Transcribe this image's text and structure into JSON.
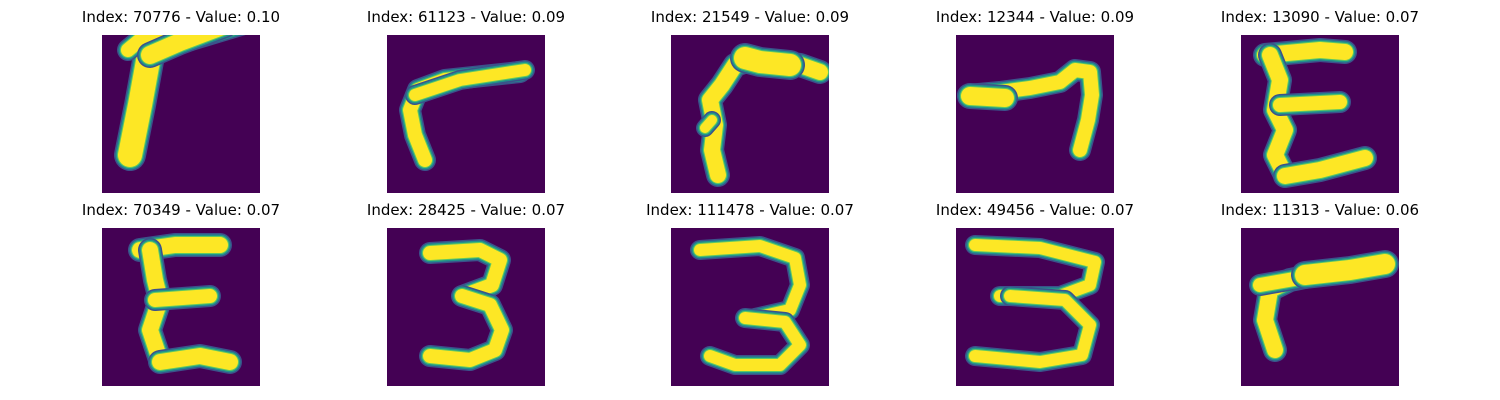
{
  "figure": {
    "background_color": "#ffffff",
    "image_background_color": "#440154",
    "colormap": [
      "#440154",
      "#3b528b",
      "#21918c",
      "#5ec962",
      "#fde725"
    ],
    "panels": [
      {
        "title": "Index: 70776 - Value: 0.10",
        "glyph": "seven-like stroke"
      },
      {
        "title": "Index: 61123 - Value: 0.09",
        "glyph": "seven-like stroke"
      },
      {
        "title": "Index: 21549 - Value: 0.09",
        "glyph": "seven-like stroke"
      },
      {
        "title": "Index: 12344 - Value: 0.09",
        "glyph": "seven-like stroke"
      },
      {
        "title": "Index: 13090 - Value: 0.07",
        "glyph": "E-shape"
      },
      {
        "title": "Index: 70349 - Value: 0.07",
        "glyph": "E-shape"
      },
      {
        "title": "Index: 28425 - Value: 0.07",
        "glyph": "three"
      },
      {
        "title": "Index: 111478 - Value: 0.07",
        "glyph": "three"
      },
      {
        "title": "Index: 49456 - Value: 0.07",
        "glyph": "three"
      },
      {
        "title": "Index: 11313 - Value: 0.06",
        "glyph": "seven-like stroke"
      }
    ]
  }
}
